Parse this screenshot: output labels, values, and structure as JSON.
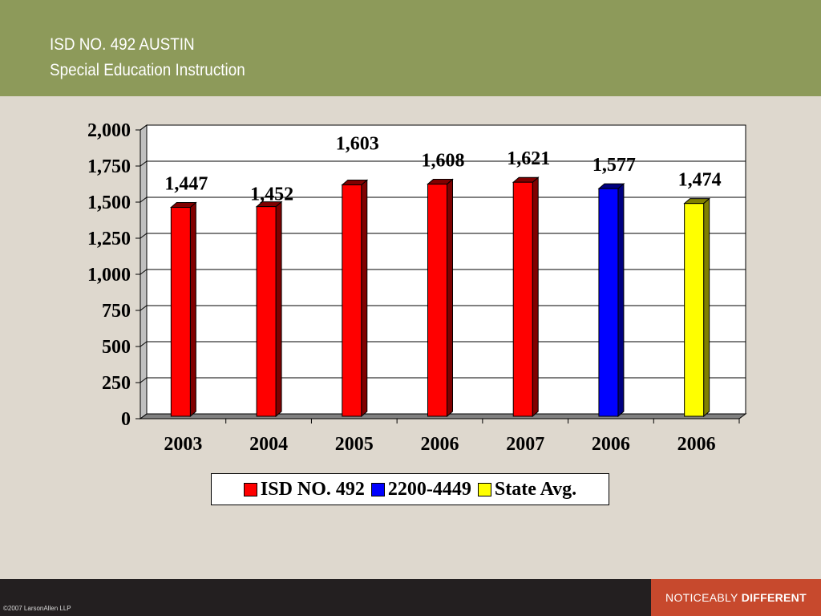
{
  "slide": {
    "title_line1": "ISD NO. 492 AUSTIN",
    "title_line2": "Special Education Instruction",
    "copyright": "©2007 LarsonAllen LLP",
    "tagline_light": "NOTICEABLY",
    "tagline_bold": "DIFFERENT"
  },
  "colors": {
    "header": "#8d9a5a",
    "background": "#ded8ce",
    "footer": "#231f20",
    "tagline_box": "#c7492d"
  },
  "chart_data": {
    "type": "bar",
    "categories": [
      "2003",
      "2004",
      "2005",
      "2006",
      "2007",
      "2006",
      "2006"
    ],
    "values": [
      1447,
      1452,
      1603,
      1608,
      1621,
      1577,
      1474
    ],
    "value_labels": [
      "1,447",
      "1,452",
      "1,603",
      "1,608",
      "1,621",
      "1,577",
      "1,474"
    ],
    "bar_series": [
      0,
      0,
      0,
      0,
      0,
      1,
      2
    ],
    "series": [
      {
        "name": "ISD NO. 492",
        "color": "#ff0000",
        "dark": "#800000"
      },
      {
        "name": "2200-4449",
        "color": "#0000ff",
        "dark": "#000080"
      },
      {
        "name": "State Avg.",
        "color": "#ffff00",
        "dark": "#808000"
      }
    ],
    "ylim": [
      0,
      2000
    ],
    "yticks": [
      0,
      250,
      500,
      750,
      1000,
      1250,
      1500,
      1750,
      2000
    ],
    "ytick_labels": [
      "0",
      "250",
      "500",
      "750",
      "1,000",
      "1,250",
      "1,500",
      "1,750",
      "2,000"
    ],
    "grid": true,
    "legend_position": "bottom"
  }
}
